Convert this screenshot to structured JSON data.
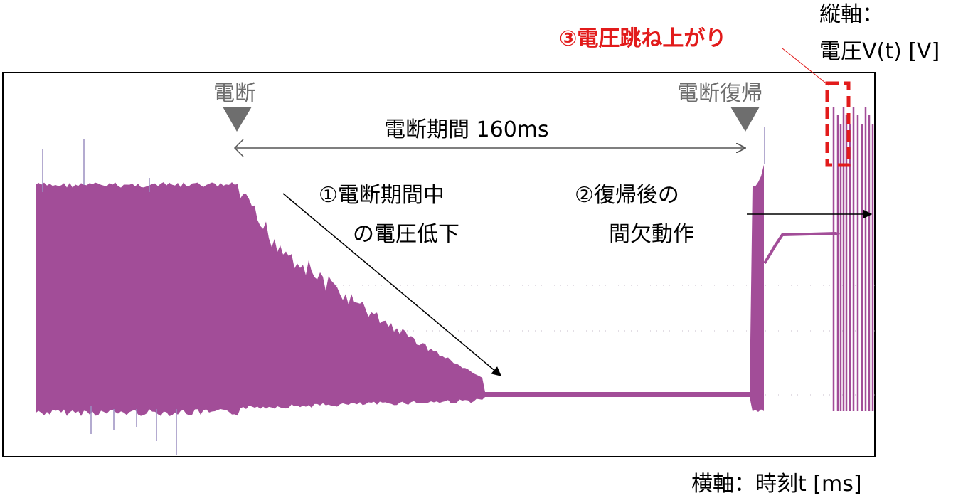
{
  "chart_data": {
    "type": "area",
    "title": "",
    "xlabel": "横軸：時刻t [ms]",
    "ylabel": "縦軸：電圧V(t) [V]",
    "series_color": "#a24d98",
    "event_color": "#6e6e6e",
    "highlight_color": "#e21b1b",
    "outage_period_ms": 160,
    "events": {
      "outage": "電断",
      "recovery": "電断復帰"
    },
    "period_label": "電断期間 160ms",
    "annotations": [
      {
        "id": "drop",
        "lines": [
          "①電断期間中",
          "の電圧低下"
        ]
      },
      {
        "id": "intermittent",
        "lines": [
          "②復帰後の",
          "間欠動作"
        ]
      },
      {
        "id": "spike",
        "lines": [
          "③電圧跳ね上がり"
        ]
      }
    ]
  }
}
